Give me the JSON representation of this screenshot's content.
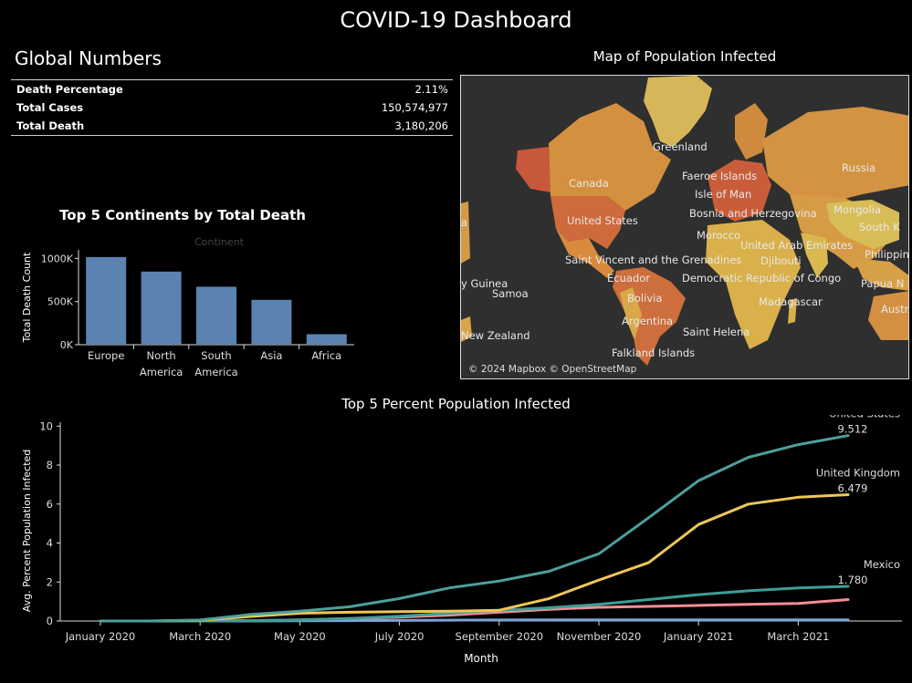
{
  "dashboard": {
    "title": "COVID-19 Dashboard"
  },
  "global_numbers": {
    "title": "Global Numbers",
    "rows": [
      {
        "label": "Death Percentage",
        "value": "2.11%"
      },
      {
        "label": "Total Cases",
        "value": "150,574,977"
      },
      {
        "label": "Total Death",
        "value": "3,180,206"
      }
    ]
  },
  "map": {
    "title": "Map of Population Infected",
    "attribution": "© 2024 Mapbox © OpenStreetMap",
    "colors": {
      "background": "#2f2f2f",
      "low": "#d9b44a",
      "mid": "#d38a3e",
      "high": "#c8563a"
    },
    "labels": [
      "Greenland",
      "Faeroe Islands",
      "Russia",
      "Canada",
      "Isle of Man",
      "Bosnia and Herzegovina",
      "Mongolia",
      "South K",
      "United States",
      "Morocco",
      "United Arab Emirates",
      "Philippine",
      "Saint Vincent and the Grenadines",
      "Djibouti",
      "y Guinea",
      "Ecuador",
      "Democratic Republic of Congo",
      "Papua N",
      "Samoa",
      "Bolivia",
      "Madagascar",
      "Austr",
      "a",
      "Argentina",
      "New Zealand",
      "Saint Helena",
      "Falkland Islands"
    ]
  },
  "chart_data": [
    {
      "type": "bar",
      "title": "Top 5 Continents by Total Death",
      "legend_title": "Continent",
      "ylabel": "Total Death Count",
      "xlabel": "",
      "categories": [
        "Europe",
        "North America",
        "South America",
        "Asia",
        "Africa"
      ],
      "category_labels": [
        [
          "Europe"
        ],
        [
          "North",
          "America"
        ],
        [
          "South",
          "America"
        ],
        [
          "Asia"
        ],
        [
          "Africa"
        ]
      ],
      "values": [
        1016750,
        847942,
        672415,
        520269,
        121784
      ],
      "ylim": [
        0,
        1100000
      ],
      "yticks": [
        0,
        500000,
        1000000
      ],
      "ytick_labels": [
        "0K",
        "500K",
        "1000K"
      ],
      "color": "#5b82b0",
      "grid": false
    },
    {
      "type": "line",
      "title": "Top 5 Percent Population Infected",
      "xlabel": "Month",
      "ylabel": "Avg. Percent Population Infected",
      "x": [
        "2020-01",
        "2020-02",
        "2020-03",
        "2020-04",
        "2020-05",
        "2020-06",
        "2020-07",
        "2020-08",
        "2020-09",
        "2020-10",
        "2020-11",
        "2020-12",
        "2021-01",
        "2021-02",
        "2021-03",
        "2021-04"
      ],
      "xtick_labels": [
        "January 2020",
        "March 2020",
        "May 2020",
        "July 2020",
        "September 2020",
        "November 2020",
        "January 2021",
        "March 2021"
      ],
      "ylim": [
        0,
        10.2
      ],
      "yticks": [
        0,
        2,
        4,
        6,
        8,
        10
      ],
      "grid": false,
      "series": [
        {
          "name": "United States",
          "color": "#4e9f9b",
          "end_label": "9.512",
          "values": [
            0,
            0,
            0.05,
            0.33,
            0.5,
            0.73,
            1.15,
            1.7,
            2.05,
            2.55,
            3.45,
            5.3,
            7.2,
            8.4,
            9.05,
            9.512
          ]
        },
        {
          "name": "United Kingdom",
          "color": "#edc658",
          "end_label": "6.479",
          "values": [
            0,
            0,
            0.03,
            0.23,
            0.4,
            0.45,
            0.48,
            0.5,
            0.55,
            1.15,
            2.1,
            3.0,
            4.95,
            6.0,
            6.35,
            6.479
          ]
        },
        {
          "name": "Mexico",
          "color": "#3f9d97",
          "end_label": "1.780",
          "values": [
            0,
            0,
            0,
            0.02,
            0.05,
            0.13,
            0.25,
            0.4,
            0.55,
            0.68,
            0.85,
            1.1,
            1.35,
            1.55,
            1.7,
            1.78
          ]
        },
        {
          "name": "",
          "color": "#f08f94",
          "values": [
            0,
            0,
            0,
            0.02,
            0.06,
            0.12,
            0.2,
            0.3,
            0.45,
            0.6,
            0.7,
            0.75,
            0.8,
            0.85,
            0.9,
            1.1
          ]
        },
        {
          "name": "",
          "color": "#7aa3d8",
          "values": [
            0,
            0,
            0,
            0,
            0.01,
            0.02,
            0.03,
            0.04,
            0.05,
            0.06,
            0.06,
            0.06,
            0.06,
            0.06,
            0.06,
            0.06
          ]
        }
      ]
    }
  ]
}
